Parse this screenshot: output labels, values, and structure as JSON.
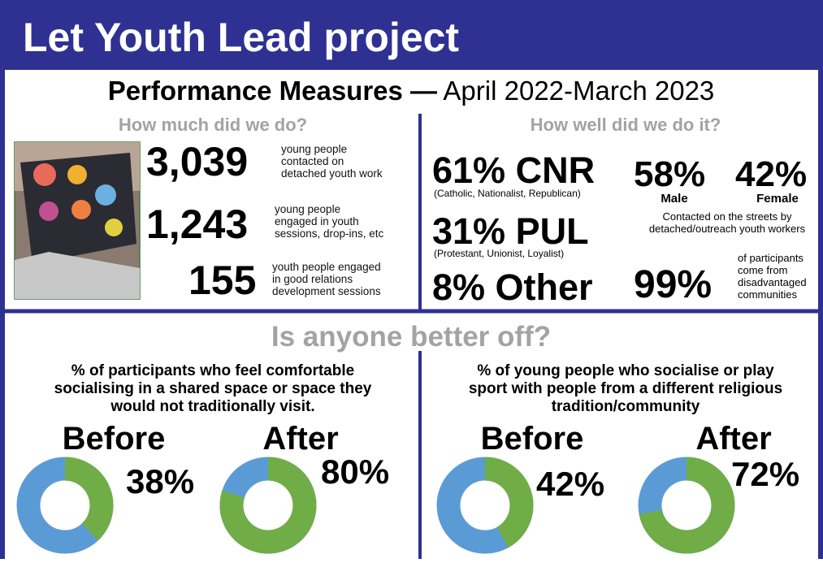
{
  "header": {
    "title": "Let Youth Lead project"
  },
  "subtitle": {
    "bold": "Performance Measures —",
    "rest": "April 2022-March 2023"
  },
  "how_much": {
    "heading": "How much did we do?",
    "items": [
      {
        "number": "3,039",
        "text": [
          "young people",
          "contacted on",
          "detached youth work"
        ]
      },
      {
        "number": "1,243",
        "text": [
          "young people",
          "engaged in youth",
          "sessions, drop-ins, etc"
        ]
      },
      {
        "number": "155",
        "text": [
          "youth people engaged",
          "in good relations",
          "development sessions"
        ]
      }
    ]
  },
  "how_well": {
    "heading": "How well did we do it?",
    "cnr": {
      "number": "61% CNR",
      "note": "(Catholic, Nationalist, Republican)"
    },
    "pul": {
      "number": "31% PUL",
      "note": "(Protestant, Unionist, Loyalist)"
    },
    "other": "8% Other",
    "male": {
      "number": "58%",
      "label": "Male"
    },
    "female": {
      "number": "42%",
      "label": "Female"
    },
    "streets_note": [
      "Contacted on the streets by",
      "detached/outreach youth workers"
    ],
    "disadvantaged": {
      "number": "99%",
      "text": [
        "of participants",
        "come from",
        "disadvantaged",
        "communities"
      ]
    }
  },
  "better_off": {
    "heading": "Is anyone better off?",
    "panels": [
      {
        "question": [
          "% of participants who feel comfortable",
          "socialising in a shared space or space they",
          "would not traditionally visit."
        ],
        "before": {
          "label": "Before",
          "value": 38,
          "value_label": "38%"
        },
        "after": {
          "label": "After",
          "value": 80,
          "value_label": "80%"
        }
      },
      {
        "question": [
          "% of young people who socialise or play",
          "sport with people from a different religious",
          "tradition/community"
        ],
        "before": {
          "label": "Before",
          "value": 42,
          "value_label": "42%"
        },
        "after": {
          "label": "After",
          "value": 72,
          "value_label": "72%"
        }
      }
    ]
  }
}
